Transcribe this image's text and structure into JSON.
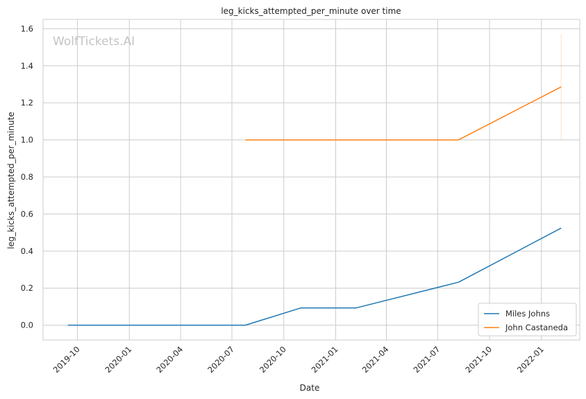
{
  "chart_data": {
    "type": "line",
    "title": "leg_kicks_attempted_per_minute over time",
    "xlabel": "Date",
    "ylabel": "leg_kicks_attempted_per_minute",
    "watermark": "WolfTickets.AI",
    "xlim": [
      "2019-08-01",
      "2022-03-10"
    ],
    "ylim": [
      -0.08,
      1.65
    ],
    "x_ticks": [
      "2019-10",
      "2020-01",
      "2020-04",
      "2020-07",
      "2020-10",
      "2021-01",
      "2021-04",
      "2021-07",
      "2021-10",
      "2022-01"
    ],
    "y_ticks": [
      "0.0",
      "0.2",
      "0.4",
      "0.6",
      "0.8",
      "1.0",
      "1.2",
      "1.4",
      "1.6"
    ],
    "grid": true,
    "legend_position": "bottom-right",
    "series": [
      {
        "name": "Miles Johns",
        "color": "#1f77b4",
        "x": [
          "2019-09-14",
          "2020-07-25",
          "2020-10-31",
          "2021-02-06",
          "2021-08-07",
          "2022-02-05"
        ],
        "y": [
          0.0,
          0.0,
          0.093,
          0.093,
          0.232,
          0.524
        ]
      },
      {
        "name": "John Castaneda",
        "color": "#ff7f0e",
        "x": [
          "2020-07-25",
          "2021-08-07",
          "2022-02-05"
        ],
        "y": [
          1.0,
          1.0,
          1.286
        ]
      }
    ],
    "annotations": [
      {
        "type": "error-bar",
        "series": "John Castaneda",
        "x": "2022-02-05",
        "y_low": 1.0,
        "y_high": 1.57
      }
    ]
  }
}
